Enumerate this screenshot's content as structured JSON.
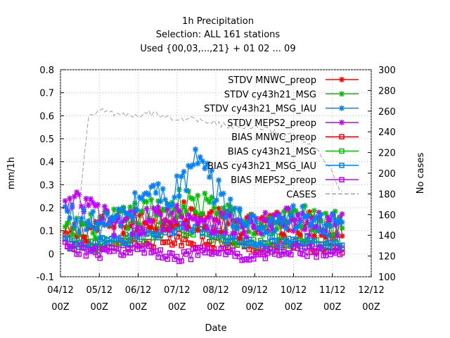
{
  "chart_data": {
    "type": "line",
    "title": [
      "1h Precipitation",
      "Selection: ALL    161 stations",
      "Used {00,03,...,21} + 01 02 ... 09"
    ],
    "xlabel": "Date",
    "ylabel": "mm/1h",
    "y2label": "No cases",
    "x_ticks": [
      {
        "top": "04/12",
        "bottom": "00Z"
      },
      {
        "top": "05/12",
        "bottom": "00Z"
      },
      {
        "top": "06/12",
        "bottom": "00Z"
      },
      {
        "top": "07/12",
        "bottom": "00Z"
      },
      {
        "top": "08/12",
        "bottom": "00Z"
      },
      {
        "top": "09/12",
        "bottom": "00Z"
      },
      {
        "top": "10/12",
        "bottom": "00Z"
      },
      {
        "top": "11/12",
        "bottom": "00Z"
      },
      {
        "top": "12/12",
        "bottom": "00Z"
      }
    ],
    "y_ticks": [
      "-0.1",
      "0",
      "0.1",
      "0.2",
      "0.3",
      "0.4",
      "0.5",
      "0.6",
      "0.7",
      "0.8"
    ],
    "y2_ticks": [
      "100",
      "120",
      "140",
      "160",
      "180",
      "200",
      "220",
      "240",
      "260",
      "280",
      "300"
    ],
    "ylim": [
      -0.1,
      0.8
    ],
    "y2lim": [
      100,
      300
    ],
    "xlim_months": [
      0,
      8
    ],
    "legend_position": "top-right",
    "series": [
      {
        "name": "STDV MNWC_preop",
        "color": "#ff0000",
        "marker": "x",
        "axis": "y1",
        "x_start": 0.12,
        "x_end": 7.25,
        "base": [
          0.08,
          0.1,
          0.12,
          0.13,
          0.14,
          0.15,
          0.16,
          0.17,
          0.16,
          0.15,
          0.13,
          0.12,
          0.12,
          0.13,
          0.14,
          0.13,
          0.12,
          0.12
        ]
      },
      {
        "name": "STDV cy43h21_MSG",
        "color": "#00c000",
        "marker": "x",
        "axis": "y1",
        "x_start": 0.12,
        "x_end": 7.25,
        "base": [
          0.1,
          0.12,
          0.12,
          0.14,
          0.16,
          0.18,
          0.2,
          0.22,
          0.22,
          0.2,
          0.16,
          0.13,
          0.12,
          0.14,
          0.16,
          0.15,
          0.14,
          0.13
        ]
      },
      {
        "name": "STDV cy43h21_MSG_IAU",
        "color": "#0080ff",
        "marker": "x",
        "axis": "y1",
        "x_start": 0.12,
        "x_end": 7.25,
        "base": [
          0.18,
          0.15,
          0.12,
          0.14,
          0.18,
          0.28,
          0.25,
          0.28,
          0.4,
          0.3,
          0.2,
          0.14,
          0.12,
          0.14,
          0.16,
          0.14,
          0.12,
          0.13
        ]
      },
      {
        "name": "STDV MEPS2_preop",
        "color": "#c000ff",
        "marker": "x",
        "axis": "y1",
        "x_start": 0.12,
        "x_end": 7.25,
        "base": [
          0.2,
          0.22,
          0.18,
          0.12,
          0.13,
          0.15,
          0.16,
          0.17,
          0.16,
          0.15,
          0.13,
          0.11,
          0.12,
          0.14,
          0.15,
          0.13,
          0.12,
          0.14
        ]
      },
      {
        "name": "BIAS MNWC_preop",
        "color": "#ff0000",
        "marker": "square",
        "axis": "y1",
        "x_start": 0.12,
        "x_end": 7.25,
        "base": [
          0.05,
          0.04,
          0.03,
          0.03,
          0.04,
          0.05,
          0.06,
          0.06,
          0.05,
          0.05,
          0.04,
          0.04,
          0.03,
          0.04,
          0.04,
          0.03,
          0.03,
          0.03
        ]
      },
      {
        "name": "BIAS cy43h21_MSG",
        "color": "#00c000",
        "marker": "square",
        "axis": "y1",
        "x_start": 0.12,
        "x_end": 7.25,
        "base": [
          0.06,
          0.05,
          0.04,
          0.05,
          0.06,
          0.08,
          0.1,
          0.12,
          0.1,
          0.08,
          0.06,
          0.05,
          0.04,
          0.05,
          0.06,
          0.05,
          0.04,
          0.04
        ]
      },
      {
        "name": "BIAS cy43h21_MSG_IAU",
        "color": "#0080ff",
        "marker": "square",
        "axis": "y1",
        "x_start": 0.12,
        "x_end": 7.25,
        "base": [
          0.05,
          0.04,
          0.04,
          0.05,
          0.07,
          0.09,
          0.1,
          0.12,
          0.13,
          0.09,
          0.06,
          0.05,
          0.04,
          0.05,
          0.06,
          0.05,
          0.04,
          0.04
        ]
      },
      {
        "name": "BIAS MEPS2_preop",
        "color": "#c000ff",
        "marker": "square",
        "axis": "y1",
        "x_start": 0.12,
        "x_end": 7.25,
        "base": [
          0.03,
          0.02,
          0.0,
          0.01,
          0.02,
          0.02,
          0.0,
          -0.01,
          0.0,
          0.01,
          0.0,
          -0.01,
          0.0,
          0.01,
          0.02,
          0.01,
          0.0,
          0.01
        ]
      },
      {
        "name": "CASES",
        "color": "#a0a0a0",
        "marker": "none",
        "dash": "6,3",
        "axis": "y2",
        "x_start": 0.12,
        "x_end": 7.25,
        "base": [
          140,
          140,
          252,
          262,
          258,
          256,
          254,
          258,
          258,
          254,
          252,
          252,
          252,
          248,
          246,
          246,
          244,
          244,
          240,
          236,
          236,
          230,
          220,
          205,
          180
        ]
      }
    ]
  }
}
